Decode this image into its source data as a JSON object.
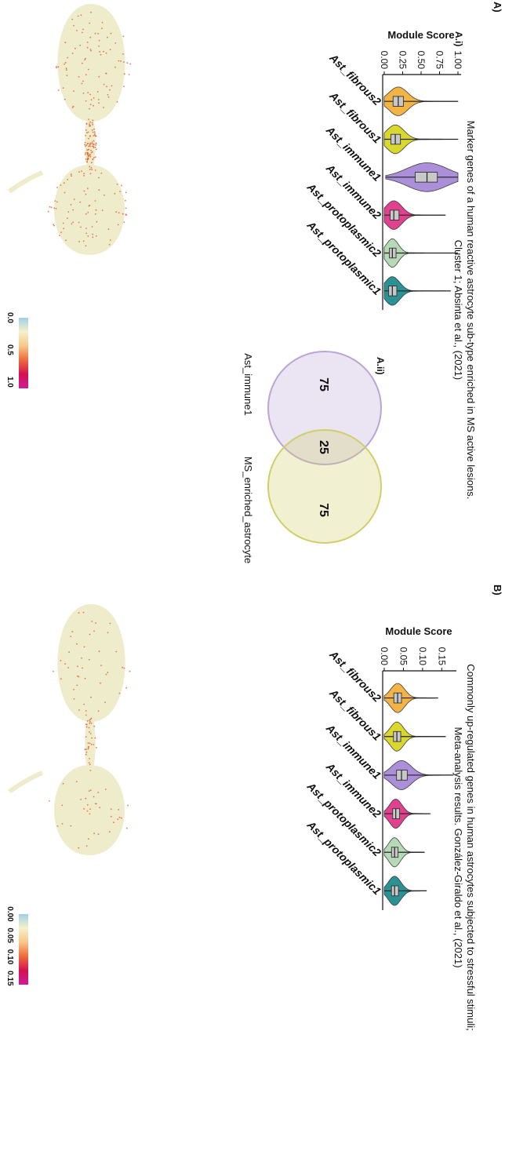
{
  "figure": {
    "panel_a_letter": "A)",
    "panel_b_letter": "B)",
    "panel_a_title_line1": "Marker genes of a human reactive astrocyte sub-type enriched in MS active lesions.",
    "panel_a_title_line2": "Cluster 1; Absinta et al., (2021)",
    "panel_b_title_line1": "Commonly up-regulated genes in human astrocytes subjected to stressful stimuli;",
    "panel_b_title_line2": "Meta-analysis results. González-Giraldo et al., (2021)",
    "sub_ai": "A.i)",
    "sub_aii": "A.ii)"
  },
  "colors": {
    "Ast_fibrous2": "#f2b13c",
    "Ast_fibrous1": "#d9d624",
    "Ast_immune1": "#a78ad6",
    "Ast_immune2": "#e0378a",
    "Ast_protoplasmic2": "#b3d9b3",
    "Ast_protoplasmic1": "#1f8d8f",
    "box": "#c8c8c8",
    "umap_base": "#eeeccb",
    "umap_hot": "#e0582a",
    "venn_a": "#bba4d6",
    "venn_b": "#cfcf6a",
    "colorbar": [
      "#9fd0ea",
      "#f6f1c8",
      "#f7c68a",
      "#ee6a3c",
      "#d4124f",
      "#d01a9b"
    ]
  },
  "chart_data": [
    {
      "type": "violin",
      "title": "Module Score",
      "ylabel": "Module Score",
      "ylim": [
        0,
        1.0
      ],
      "yticks": [
        "0.00",
        "0.25",
        "0.50",
        "0.75",
        "1.00"
      ],
      "ytick_values": [
        0,
        0.25,
        0.5,
        0.75,
        1.0
      ],
      "categories": [
        "Ast_fibrous2",
        "Ast_fibrous1",
        "Ast_immune1",
        "Ast_immune2",
        "Ast_protoplasmic2",
        "Ast_protoplasmic1"
      ],
      "series": [
        {
          "values": [
            0.19,
            0.15,
            0.58,
            0.13,
            0.11,
            0.11
          ],
          "q1": [
            0.12,
            0.09,
            0.42,
            0.08,
            0.07,
            0.06
          ],
          "q3": [
            0.26,
            0.22,
            0.72,
            0.2,
            0.16,
            0.17
          ],
          "max": [
            1.0,
            1.0,
            1.0,
            0.83,
            1.0,
            0.9
          ],
          "min": [
            0.0,
            0.0,
            0.02,
            0.0,
            0.0,
            0.0
          ]
        }
      ]
    },
    {
      "type": "venn",
      "sets": [
        "Ast_immune1",
        "MS_enriched_astrocyte"
      ],
      "only_a": 75,
      "overlap": 25,
      "only_b": 75
    },
    {
      "type": "violin",
      "title": "Module Score",
      "ylabel": "Module Score",
      "ylim": [
        0,
        0.18
      ],
      "yticks": [
        "0.00",
        "0.05",
        "0.10",
        "0.15"
      ],
      "ytick_values": [
        0,
        0.05,
        0.1,
        0.15
      ],
      "categories": [
        "Ast_fibrous2",
        "Ast_fibrous1",
        "Ast_immune1",
        "Ast_immune2",
        "Ast_protoplasmic2",
        "Ast_protoplasmic1"
      ],
      "series": [
        {
          "values": [
            0.035,
            0.033,
            0.045,
            0.03,
            0.027,
            0.027
          ],
          "q1": [
            0.025,
            0.024,
            0.032,
            0.022,
            0.019,
            0.019
          ],
          "q3": [
            0.045,
            0.043,
            0.06,
            0.04,
            0.036,
            0.037
          ],
          "max": [
            0.14,
            0.16,
            0.18,
            0.12,
            0.105,
            0.11
          ],
          "min": [
            0.0,
            0.0,
            0.0,
            0.0,
            0.0,
            0.0
          ]
        }
      ]
    }
  ],
  "colorbar_a": {
    "ticks": [
      "0.0",
      "0.5",
      "1.0"
    ],
    "tick_values": [
      0,
      0.5,
      1.0
    ]
  },
  "colorbar_b": {
    "ticks": [
      "0.00",
      "0.05",
      "0.10",
      "0.15"
    ],
    "tick_values": [
      0,
      0.05,
      0.1,
      0.15
    ]
  }
}
